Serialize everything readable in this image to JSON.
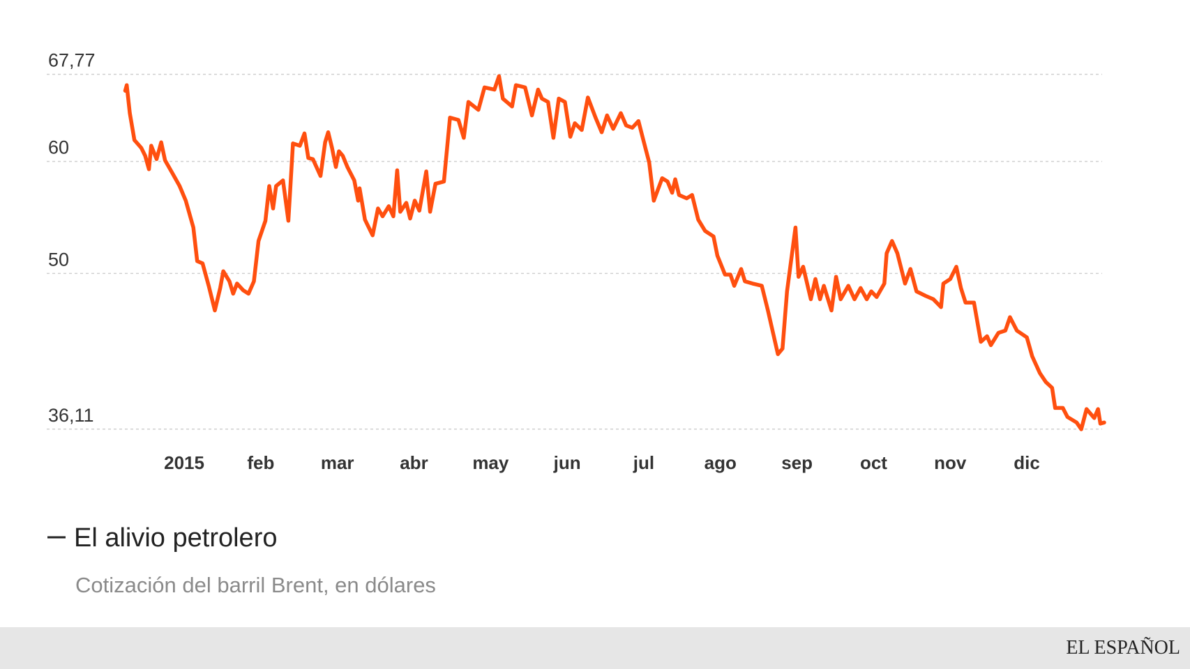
{
  "chart_data": {
    "type": "line",
    "title": "El alivio petrolero",
    "subtitle": "Cotización del barril Brent, en dólares",
    "brand": "EL ESPAÑOL",
    "x": [
      -0.77,
      -0.75,
      -0.71,
      -0.65,
      -0.56,
      -0.51,
      -0.46,
      -0.43,
      -0.36,
      -0.3,
      -0.25,
      -0.15,
      -0.06,
      0.02,
      0.12,
      0.17,
      0.24,
      0.32,
      0.4,
      0.47,
      0.51,
      0.59,
      0.64,
      0.69,
      0.77,
      0.84,
      0.91,
      0.97,
      1.06,
      1.11,
      1.16,
      1.2,
      1.29,
      1.36,
      1.42,
      1.51,
      1.57,
      1.62,
      1.68,
      1.78,
      1.84,
      1.88,
      1.93,
      1.98,
      2.02,
      2.07,
      2.13,
      2.22,
      2.27,
      2.29,
      2.36,
      2.46,
      2.53,
      2.59,
      2.67,
      2.73,
      2.78,
      2.82,
      2.9,
      2.95,
      3.01,
      3.07,
      3.16,
      3.21,
      3.28,
      3.39,
      3.47,
      3.58,
      3.65,
      3.71,
      3.84,
      3.92,
      4.05,
      4.11,
      4.16,
      4.28,
      4.33,
      4.45,
      4.54,
      4.62,
      4.67,
      4.75,
      4.82,
      4.89,
      4.97,
      5.04,
      5.1,
      5.19,
      5.27,
      5.37,
      5.45,
      5.52,
      5.6,
      5.7,
      5.77,
      5.85,
      5.93,
      5.99,
      6.07,
      6.13,
      6.24,
      6.31,
      6.37,
      6.41,
      6.46,
      6.56,
      6.63,
      6.71,
      6.8,
      6.91,
      6.96,
      7.06,
      7.13,
      7.18,
      7.27,
      7.32,
      7.42,
      7.54,
      7.62,
      7.75,
      7.81,
      7.87,
      7.98,
      8.02,
      8.08,
      8.18,
      8.24,
      8.3,
      8.35,
      8.45,
      8.51,
      8.57,
      8.67,
      8.75,
      8.83,
      8.91,
      8.97,
      9.04,
      9.14,
      9.17,
      9.24,
      9.31,
      9.41,
      9.48,
      9.56,
      9.68,
      9.78,
      9.88,
      9.91,
      10.0,
      10.08,
      10.14,
      10.2,
      10.31,
      10.4,
      10.48,
      10.53,
      10.63,
      10.72,
      10.78,
      10.87,
      11.0,
      11.07,
      11.17,
      11.25,
      11.33,
      11.37,
      11.47,
      11.53,
      11.65,
      11.71,
      11.78,
      11.88,
      11.93,
      11.96,
      12.01
    ],
    "series": [
      {
        "name": "Brent",
        "color": "#ff4f0f",
        "values": [
          66.3,
          66.8,
          64.3,
          61.9,
          61.2,
          60.5,
          59.3,
          61.4,
          60.2,
          61.7,
          60.1,
          58.9,
          57.8,
          56.5,
          54.1,
          51.1,
          50.9,
          48.9,
          46.7,
          48.7,
          50.2,
          49.3,
          48.2,
          49.1,
          48.5,
          48.2,
          49.3,
          52.9,
          54.7,
          57.8,
          55.8,
          57.8,
          58.3,
          54.7,
          61.6,
          61.4,
          62.5,
          60.3,
          60.2,
          58.7,
          61.7,
          62.6,
          61.2,
          59.5,
          60.9,
          60.5,
          59.5,
          58.3,
          56.5,
          57.6,
          54.8,
          53.4,
          55.8,
          55.1,
          56.0,
          55.1,
          59.2,
          55.5,
          56.3,
          54.9,
          56.5,
          55.6,
          59.1,
          55.5,
          58.0,
          58.2,
          63.9,
          63.7,
          62.1,
          65.3,
          64.6,
          66.6,
          66.4,
          67.6,
          65.6,
          64.9,
          66.8,
          66.6,
          64.1,
          66.4,
          65.6,
          65.3,
          62.1,
          65.6,
          65.3,
          62.2,
          63.4,
          62.8,
          65.7,
          63.9,
          62.6,
          64.1,
          62.9,
          64.3,
          63.2,
          63.0,
          63.6,
          62.0,
          59.9,
          56.5,
          58.5,
          58.2,
          57.2,
          58.4,
          57.0,
          56.7,
          57.0,
          54.8,
          53.8,
          53.3,
          51.6,
          49.9,
          49.9,
          48.9,
          50.4,
          49.3,
          49.1,
          48.9,
          46.7,
          42.8,
          43.3,
          48.4,
          54.1,
          49.7,
          50.6,
          47.7,
          49.5,
          47.7,
          48.9,
          46.7,
          49.7,
          47.7,
          48.9,
          47.7,
          48.7,
          47.7,
          48.4,
          47.9,
          49.1,
          51.8,
          52.9,
          51.8,
          49.1,
          50.4,
          48.4,
          48.0,
          47.7,
          47.0,
          49.1,
          49.5,
          50.6,
          48.7,
          47.4,
          47.4,
          43.9,
          44.4,
          43.6,
          44.7,
          44.9,
          46.1,
          44.9,
          44.3,
          42.6,
          41.1,
          40.3,
          39.8,
          38.0,
          38.0,
          37.2,
          36.7,
          36.1,
          37.9,
          37.1,
          37.9,
          36.6,
          36.7
        ]
      }
    ],
    "xlim": [
      -0.77,
      12.01
    ],
    "xticks": [
      {
        "value": 0,
        "label": "2015"
      },
      {
        "value": 1,
        "label": "feb"
      },
      {
        "value": 2,
        "label": "mar"
      },
      {
        "value": 3,
        "label": "abr"
      },
      {
        "value": 4,
        "label": "may"
      },
      {
        "value": 5,
        "label": "jun"
      },
      {
        "value": 6,
        "label": "jul"
      },
      {
        "value": 7,
        "label": "ago"
      },
      {
        "value": 8,
        "label": "sep"
      },
      {
        "value": 9,
        "label": "oct"
      },
      {
        "value": 10,
        "label": "nov"
      },
      {
        "value": 11,
        "label": "dic"
      }
    ],
    "ylim": [
      36.11,
      67.77
    ],
    "yticks": [
      {
        "value": 36.11,
        "label": "36,11"
      },
      50,
      60,
      {
        "value": 67.77,
        "label": "67,77"
      }
    ],
    "grid": true
  }
}
